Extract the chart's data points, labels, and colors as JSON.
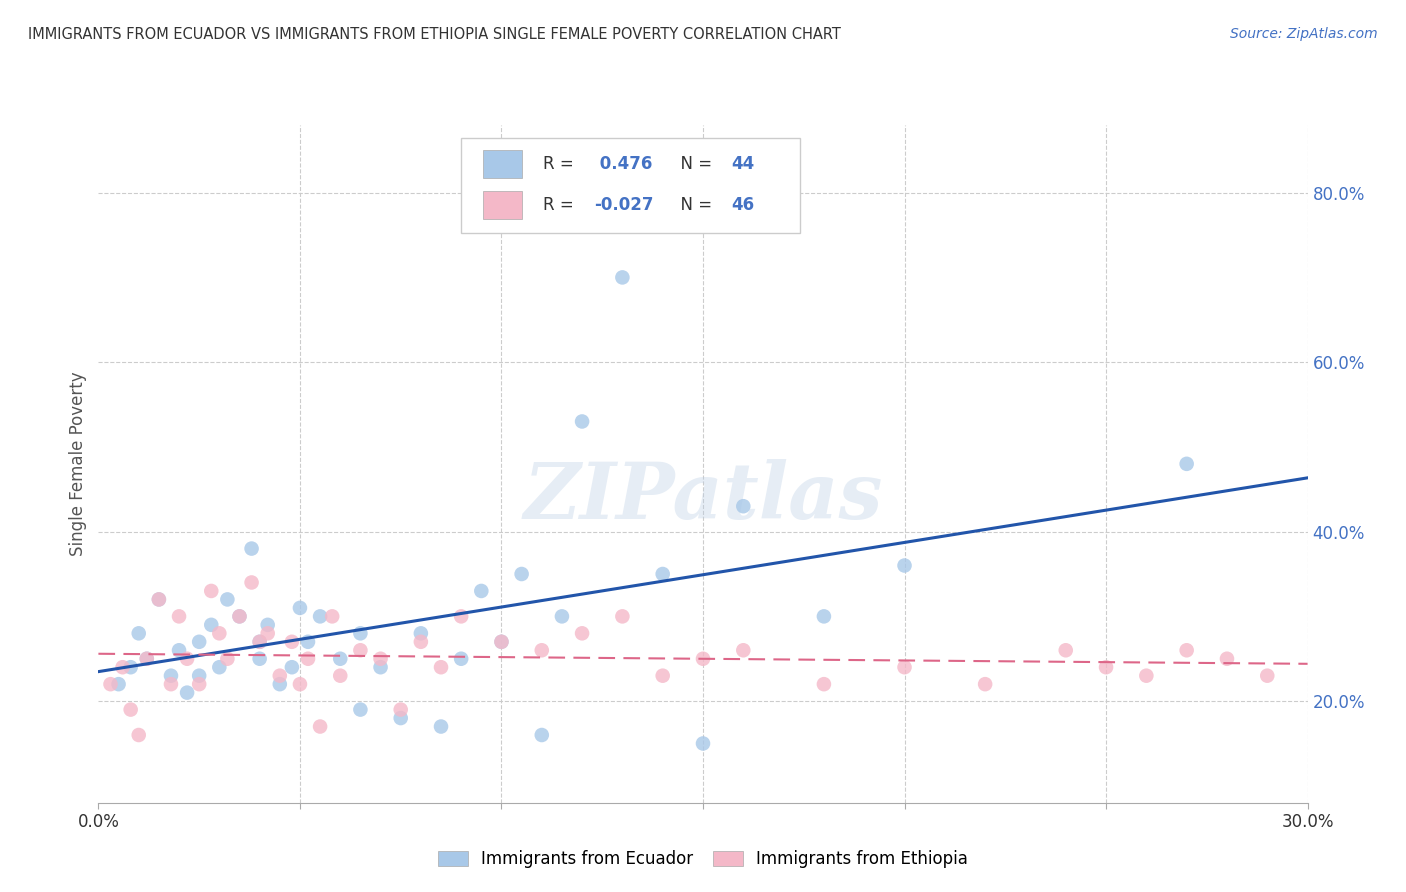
{
  "title": "IMMIGRANTS FROM ECUADOR VS IMMIGRANTS FROM ETHIOPIA SINGLE FEMALE POVERTY CORRELATION CHART",
  "source": "Source: ZipAtlas.com",
  "ylabel": "Single Female Poverty",
  "ecuador_color": "#a8c8e8",
  "ethiopia_color": "#f4b8c8",
  "ecuador_line_color": "#2255aa",
  "ethiopia_line_color": "#dd6688",
  "text_color": "#4472c4",
  "watermark": "ZIPatlas",
  "legend_ecuador_R": "0.476",
  "legend_ecuador_N": "44",
  "legend_ethiopia_R": "-0.027",
  "legend_ethiopia_N": "46",
  "xlim": [
    0.0,
    0.3
  ],
  "ylim": [
    0.08,
    0.88
  ],
  "ecuador_x": [
    0.005,
    0.008,
    0.01,
    0.012,
    0.015,
    0.018,
    0.02,
    0.022,
    0.025,
    0.025,
    0.028,
    0.03,
    0.032,
    0.035,
    0.038,
    0.04,
    0.04,
    0.042,
    0.045,
    0.048,
    0.05,
    0.052,
    0.055,
    0.06,
    0.065,
    0.065,
    0.07,
    0.075,
    0.08,
    0.085,
    0.09,
    0.095,
    0.1,
    0.105,
    0.11,
    0.115,
    0.12,
    0.13,
    0.14,
    0.15,
    0.16,
    0.18,
    0.2,
    0.27
  ],
  "ecuador_y": [
    0.22,
    0.24,
    0.28,
    0.25,
    0.32,
    0.23,
    0.26,
    0.21,
    0.27,
    0.23,
    0.29,
    0.24,
    0.32,
    0.3,
    0.38,
    0.27,
    0.25,
    0.29,
    0.22,
    0.24,
    0.31,
    0.27,
    0.3,
    0.25,
    0.28,
    0.19,
    0.24,
    0.18,
    0.28,
    0.17,
    0.25,
    0.33,
    0.27,
    0.35,
    0.16,
    0.3,
    0.53,
    0.7,
    0.35,
    0.15,
    0.43,
    0.3,
    0.36,
    0.48
  ],
  "ethiopia_x": [
    0.003,
    0.006,
    0.008,
    0.01,
    0.012,
    0.015,
    0.018,
    0.02,
    0.022,
    0.025,
    0.028,
    0.03,
    0.032,
    0.035,
    0.038,
    0.04,
    0.042,
    0.045,
    0.048,
    0.05,
    0.052,
    0.055,
    0.058,
    0.06,
    0.065,
    0.07,
    0.075,
    0.08,
    0.085,
    0.09,
    0.1,
    0.11,
    0.12,
    0.13,
    0.14,
    0.15,
    0.16,
    0.18,
    0.2,
    0.22,
    0.24,
    0.25,
    0.26,
    0.27,
    0.28,
    0.29
  ],
  "ethiopia_y": [
    0.22,
    0.24,
    0.19,
    0.16,
    0.25,
    0.32,
    0.22,
    0.3,
    0.25,
    0.22,
    0.33,
    0.28,
    0.25,
    0.3,
    0.34,
    0.27,
    0.28,
    0.23,
    0.27,
    0.22,
    0.25,
    0.17,
    0.3,
    0.23,
    0.26,
    0.25,
    0.19,
    0.27,
    0.24,
    0.3,
    0.27,
    0.26,
    0.28,
    0.3,
    0.23,
    0.25,
    0.26,
    0.22,
    0.24,
    0.22,
    0.26,
    0.24,
    0.23,
    0.26,
    0.25,
    0.23
  ]
}
